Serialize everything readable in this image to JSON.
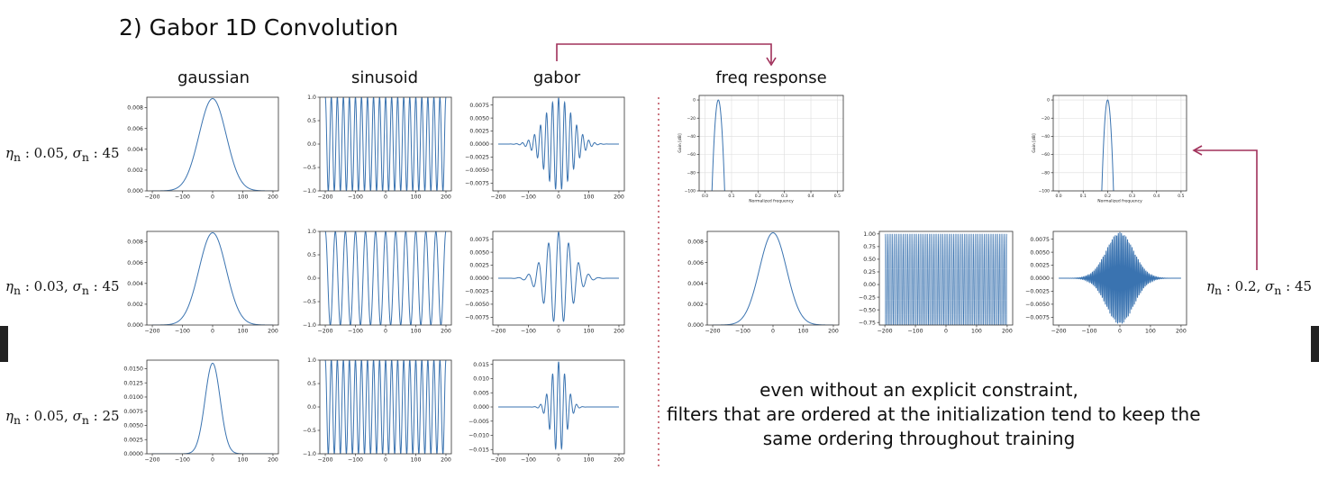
{
  "title": "2)  Gabor 1D Convolution",
  "columns": {
    "gaussian": "gaussian",
    "sinusoid": "sinusoid",
    "gabor": "gabor",
    "freq_response": "freq response"
  },
  "row_labels": {
    "row1": {
      "eta": "η",
      "eta_sub": "n",
      "eta_val": " : 0.05, ",
      "sigma": "σ",
      "sigma_sub": "n",
      "sigma_val": " : 45"
    },
    "row2": {
      "eta": "η",
      "eta_sub": "n",
      "eta_val": " : 0.03, ",
      "sigma": "σ",
      "sigma_sub": "n",
      "sigma_val": " : 45"
    },
    "row3": {
      "eta": "η",
      "eta_sub": "n",
      "eta_val": " : 0.05, ",
      "sigma": "σ",
      "sigma_sub": "n",
      "sigma_val": " : 25"
    },
    "right": {
      "eta": "η",
      "eta_sub": "n",
      "eta_val": " : 0.2, ",
      "sigma": "σ",
      "sigma_sub": "n",
      "sigma_val": " : 45"
    }
  },
  "note": {
    "line1": "even without an explicit constraint,",
    "line2": "filters that are ordered at the initialization tend to keep the",
    "line3": "same ordering throughout training"
  },
  "colors": {
    "line": "#3a73b0",
    "arrow": "#a0305a",
    "divider": "#b03040"
  },
  "chart_data": [
    {
      "id": "g1",
      "type": "line",
      "func": "gaussian",
      "sigma": 45,
      "x": [
        -200,
        200
      ],
      "ylim": [
        0,
        0.009
      ],
      "xticks": [
        -200,
        -100,
        0,
        100,
        200
      ],
      "yticks": [
        0,
        0.002,
        0.004,
        0.006,
        0.008
      ],
      "xticklabels": [
        "−200",
        "−100",
        "0",
        "100",
        "200"
      ],
      "yticklabels": [
        "0.000",
        "0.002",
        "0.004",
        "0.006",
        "0.008"
      ]
    },
    {
      "id": "s1",
      "type": "line",
      "func": "sinusoid",
      "eta": 0.05,
      "x": [
        -200,
        200
      ],
      "ylim": [
        -1,
        1
      ],
      "xticks": [
        -200,
        -100,
        0,
        100,
        200
      ],
      "yticks": [
        -1,
        -0.5,
        0,
        0.5,
        1
      ],
      "xticklabels": [
        "−200",
        "−100",
        "0",
        "100",
        "200"
      ],
      "yticklabels": [
        "−1.0",
        "−0.5",
        "0.0",
        "0.5",
        "1.0"
      ]
    },
    {
      "id": "b1",
      "type": "line",
      "func": "gabor",
      "eta": 0.05,
      "sigma": 45,
      "x": [
        -200,
        200
      ],
      "ylim": [
        -0.009,
        0.009
      ],
      "xticks": [
        -200,
        -100,
        0,
        100,
        200
      ],
      "yticks": [
        -0.0075,
        -0.005,
        -0.0025,
        0,
        0.0025,
        0.005,
        0.0075
      ],
      "xticklabels": [
        "−200",
        "−100",
        "0",
        "100",
        "200"
      ],
      "yticklabels": [
        "−0.0075",
        "−0.0050",
        "−0.0025",
        "0.0000",
        "0.0025",
        "0.0050",
        "0.0075"
      ]
    },
    {
      "id": "f1",
      "type": "line",
      "func": "freqresp",
      "eta": 0.05,
      "sigma": 45,
      "x": [
        0,
        0.5
      ],
      "ylim": [
        -100,
        5
      ],
      "xlabel": "Normalized frequency",
      "ylabel": "Gain [dB]",
      "xticks": [
        0,
        0.1,
        0.2,
        0.3,
        0.4,
        0.5
      ],
      "yticks": [
        -100,
        -80,
        -60,
        -40,
        -20,
        0
      ],
      "xticklabels": [
        "0.0",
        "0.1",
        "0.2",
        "0.3",
        "0.4",
        "0.5"
      ],
      "yticklabels": [
        "−100",
        "−80",
        "−60",
        "−40",
        "−20",
        "0"
      ],
      "grid": true
    },
    {
      "id": "f2",
      "type": "line",
      "func": "freqresp",
      "eta": 0.2,
      "sigma": 45,
      "x": [
        0,
        0.5
      ],
      "ylim": [
        -100,
        5
      ],
      "xlabel": "Normalized frequency",
      "ylabel": "Gain [dB]",
      "xticks": [
        0,
        0.1,
        0.2,
        0.3,
        0.4,
        0.5
      ],
      "yticks": [
        -100,
        -80,
        -60,
        -40,
        -20,
        0
      ],
      "xticklabels": [
        "0.0",
        "0.1",
        "0.2",
        "0.3",
        "0.4",
        "0.5"
      ],
      "yticklabels": [
        "−100",
        "−80",
        "−60",
        "−40",
        "−20",
        "0"
      ],
      "grid": true
    },
    {
      "id": "g2",
      "type": "line",
      "func": "gaussian",
      "sigma": 45,
      "x": [
        -200,
        200
      ],
      "ylim": [
        0,
        0.009
      ],
      "xticks": [
        -200,
        -100,
        0,
        100,
        200
      ],
      "yticks": [
        0,
        0.002,
        0.004,
        0.006,
        0.008
      ],
      "xticklabels": [
        "−200",
        "−100",
        "0",
        "100",
        "200"
      ],
      "yticklabels": [
        "0.000",
        "0.002",
        "0.004",
        "0.006",
        "0.008"
      ]
    },
    {
      "id": "s2",
      "type": "line",
      "func": "sinusoid",
      "eta": 0.03,
      "x": [
        -200,
        200
      ],
      "ylim": [
        -1,
        1
      ],
      "xticks": [
        -200,
        -100,
        0,
        100,
        200
      ],
      "yticks": [
        -1,
        -0.5,
        0,
        0.5,
        1
      ],
      "xticklabels": [
        "−200",
        "−100",
        "0",
        "100",
        "200"
      ],
      "yticklabels": [
        "−1.0",
        "−0.5",
        "0.0",
        "0.5",
        "1.0"
      ]
    },
    {
      "id": "b2",
      "type": "line",
      "func": "gabor",
      "eta": 0.03,
      "sigma": 45,
      "x": [
        -200,
        200
      ],
      "ylim": [
        -0.009,
        0.009
      ],
      "xticks": [
        -200,
        -100,
        0,
        100,
        200
      ],
      "yticks": [
        -0.0075,
        -0.005,
        -0.0025,
        0,
        0.0025,
        0.005,
        0.0075
      ],
      "xticklabels": [
        "−200",
        "−100",
        "0",
        "100",
        "200"
      ],
      "yticklabels": [
        "−0.0075",
        "−0.0050",
        "−0.0025",
        "0.0000",
        "0.0025",
        "0.0050",
        "0.0075"
      ]
    },
    {
      "id": "g4",
      "type": "line",
      "func": "gaussian",
      "sigma": 45,
      "x": [
        -200,
        200
      ],
      "ylim": [
        0,
        0.009
      ],
      "xticks": [
        -200,
        -100,
        0,
        100,
        200
      ],
      "yticks": [
        0,
        0.002,
        0.004,
        0.006,
        0.008
      ],
      "xticklabels": [
        "−200",
        "−100",
        "0",
        "100",
        "200"
      ],
      "yticklabels": [
        "0.000",
        "0.002",
        "0.004",
        "0.006",
        "0.008"
      ]
    },
    {
      "id": "s4",
      "type": "line",
      "func": "sinusoid",
      "eta": 0.2,
      "x": [
        -200,
        200
      ],
      "ylim": [
        -0.8,
        1.05
      ],
      "xticks": [
        -200,
        -100,
        0,
        100,
        200
      ],
      "yticks": [
        -0.75,
        -0.5,
        -0.25,
        0,
        0.25,
        0.5,
        0.75,
        1
      ],
      "xticklabels": [
        "−200",
        "−100",
        "0",
        "100",
        "200"
      ],
      "yticklabels": [
        "−0.75",
        "−0.50",
        "−0.25",
        "0.00",
        "0.25",
        "0.50",
        "0.75",
        "1.00"
      ]
    },
    {
      "id": "b4",
      "type": "line",
      "func": "gabor",
      "eta": 0.2,
      "sigma": 45,
      "x": [
        -200,
        200
      ],
      "ylim": [
        -0.009,
        0.009
      ],
      "xticks": [
        -200,
        -100,
        0,
        100,
        200
      ],
      "yticks": [
        -0.0075,
        -0.005,
        -0.0025,
        0,
        0.0025,
        0.005,
        0.0075
      ],
      "xticklabels": [
        "−200",
        "−100",
        "0",
        "100",
        "200"
      ],
      "yticklabels": [
        "−0.0075",
        "−0.0050",
        "−0.0025",
        "0.0000",
        "0.0025",
        "0.0050",
        "0.0075"
      ]
    },
    {
      "id": "g3",
      "type": "line",
      "func": "gaussian",
      "sigma": 25,
      "x": [
        -200,
        200
      ],
      "ylim": [
        0,
        0.0165
      ],
      "xticks": [
        -200,
        -100,
        0,
        100,
        200
      ],
      "yticks": [
        0,
        0.0025,
        0.005,
        0.0075,
        0.01,
        0.0125,
        0.015
      ],
      "xticklabels": [
        "−200",
        "−100",
        "0",
        "100",
        "200"
      ],
      "yticklabels": [
        "0.0000",
        "0.0025",
        "0.0050",
        "0.0075",
        "0.0100",
        "0.0125",
        "0.0150"
      ]
    },
    {
      "id": "s3",
      "type": "line",
      "func": "sinusoid",
      "eta": 0.05,
      "x": [
        -200,
        200
      ],
      "ylim": [
        -1,
        1
      ],
      "xticks": [
        -200,
        -100,
        0,
        100,
        200
      ],
      "yticks": [
        -1,
        -0.5,
        0,
        0.5,
        1
      ],
      "xticklabels": [
        "−200",
        "−100",
        "0",
        "100",
        "200"
      ],
      "yticklabels": [
        "−1.0",
        "−0.5",
        "0.0",
        "0.5",
        "1.0"
      ]
    },
    {
      "id": "b3",
      "type": "line",
      "func": "gabor",
      "eta": 0.05,
      "sigma": 25,
      "x": [
        -200,
        200
      ],
      "ylim": [
        -0.0165,
        0.0165
      ],
      "xticks": [
        -200,
        -100,
        0,
        100,
        200
      ],
      "yticks": [
        -0.015,
        -0.01,
        -0.005,
        0,
        0.005,
        0.01,
        0.015
      ],
      "xticklabels": [
        "−200",
        "−100",
        "0",
        "100",
        "200"
      ],
      "yticklabels": [
        "−0.015",
        "−0.010",
        "−0.005",
        "0.000",
        "0.005",
        "0.010",
        "0.015"
      ]
    }
  ]
}
